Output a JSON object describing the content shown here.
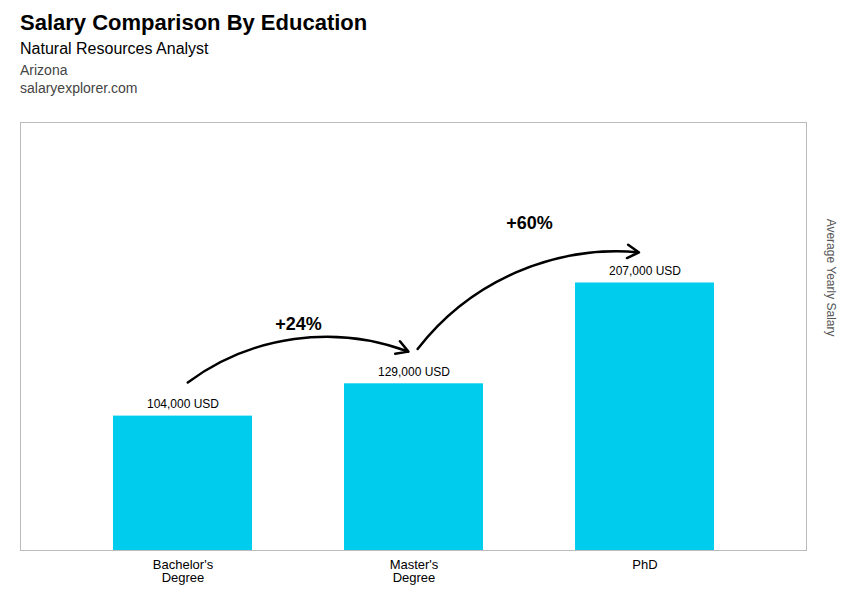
{
  "chart_data": {
    "type": "bar",
    "title": "Salary Comparison By Education",
    "subtitle": "Natural Resources Analyst",
    "categories": [
      "Bachelor's\nDegree",
      "Master's\nDegree",
      "PhD"
    ],
    "values": [
      104000,
      129000,
      207000
    ],
    "value_labels": [
      "104,000 USD",
      "129,000 USD",
      "207,000 USD"
    ],
    "data_labels": true,
    "color": "#00ccee",
    "ylabel": "Average Yearly Salary",
    "ylim": [
      0,
      331200
    ],
    "tick_labels": "x",
    "grid": false,
    "annotations": [
      {
        "text": "Arizona"
      },
      {
        "text": "salaryexplorer.com"
      },
      {
        "text": "+24%",
        "from": "Bachelor's\nDegree",
        "to": "Master's\nDegree"
      },
      {
        "text": "+60%",
        "from": "Master's\nDegree",
        "to": "PhD"
      }
    ]
  }
}
